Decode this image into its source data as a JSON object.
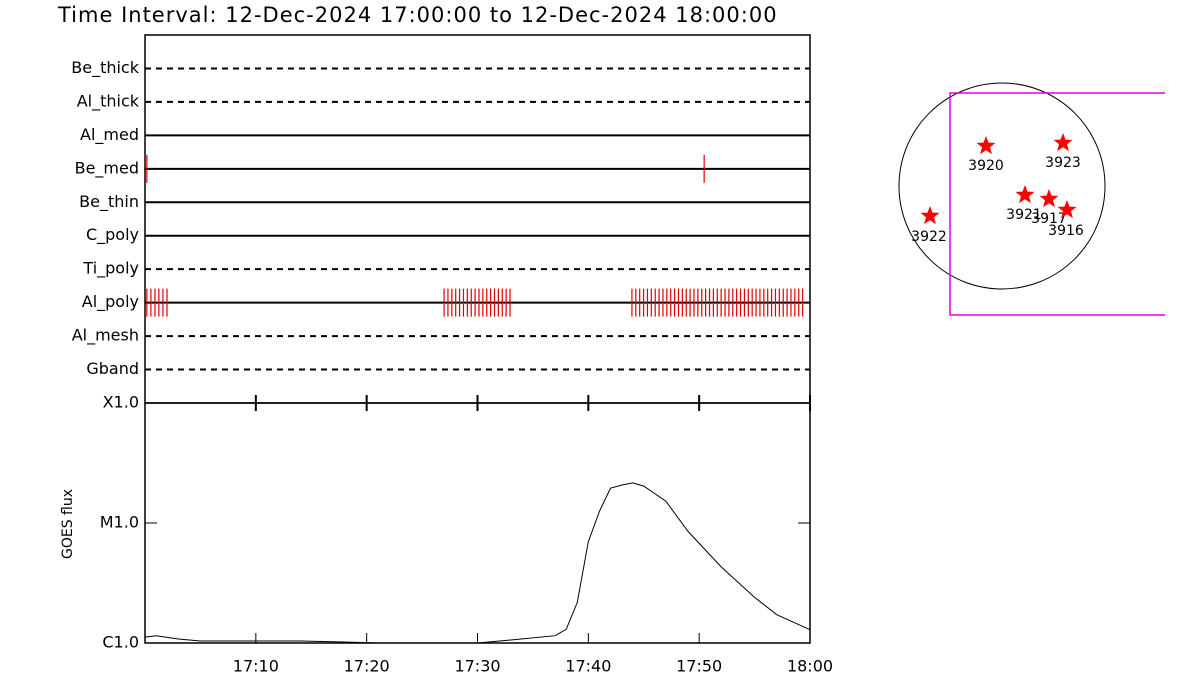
{
  "title": "Time Interval: 12-Dec-2024 17:00:00 to 12-Dec-2024 18:00:00",
  "chart_data": [
    {
      "type": "timeline",
      "categories": [
        "Be_thick",
        "Al_thick",
        "Al_med",
        "Be_med",
        "Be_thin",
        "C_poly",
        "Ti_poly",
        "Al_poly",
        "Al_mesh",
        "Gband"
      ],
      "line_styles": [
        "dashed",
        "dashed",
        "solid",
        "solid",
        "solid",
        "solid",
        "dashed",
        "solid",
        "dashed",
        "dashed"
      ],
      "color": "#e00000",
      "xlim": [
        "17:00:00",
        "18:00:00"
      ],
      "events": [
        [],
        [],
        [],
        [
          "17:00:10",
          "17:50:27"
        ],
        [],
        [],
        [],
        [
          "17:00:10",
          "17:00:32",
          "17:00:54",
          "17:01:15",
          "17:01:37",
          "17:01:59",
          "17:26:59",
          "17:27:20",
          "17:27:41",
          "17:28:02",
          "17:28:23",
          "17:28:44",
          "17:29:05",
          "17:29:26",
          "17:29:47",
          "17:30:08",
          "17:30:29",
          "17:30:50",
          "17:31:11",
          "17:31:32",
          "17:31:53",
          "17:32:14",
          "17:32:35",
          "17:32:56",
          "17:43:56",
          "17:44:17",
          "17:44:38",
          "17:44:59",
          "17:45:20",
          "17:45:41",
          "17:46:02",
          "17:46:23",
          "17:46:44",
          "17:47:05",
          "17:47:26",
          "17:47:47",
          "17:48:08",
          "17:48:29",
          "17:48:50",
          "17:49:11",
          "17:49:32",
          "17:49:53",
          "17:50:14",
          "17:50:35",
          "17:50:56",
          "17:51:17",
          "17:51:38",
          "17:51:59",
          "17:52:20",
          "17:52:41",
          "17:53:02",
          "17:53:23",
          "17:53:44",
          "17:54:05",
          "17:54:26",
          "17:54:47",
          "17:55:08",
          "17:55:29",
          "17:55:50",
          "17:56:11",
          "17:56:32",
          "17:56:53",
          "17:57:14",
          "17:57:35",
          "17:57:56",
          "17:58:17",
          "17:58:38",
          "17:58:59",
          "17:59:20"
        ],
        [],
        []
      ]
    },
    {
      "type": "line",
      "ylabel": "GOES flux",
      "log": true,
      "color": "#000000",
      "x": [
        "17:00",
        "17:01",
        "17:03",
        "17:05",
        "17:14",
        "17:18",
        "17:21",
        "17:28",
        "17:30",
        "17:33",
        "17:37",
        "17:38",
        "17:39",
        "17:40",
        "17:41",
        "17:42",
        "17:43",
        "17:44",
        "17:45",
        "17:47",
        "17:49",
        "17:52",
        "17:55",
        "17:57",
        "17:59",
        "18:00"
      ],
      "values": [
        1.12e-06,
        1.15e-06,
        1.08e-06,
        1.04e-06,
        1.04e-06,
        1.02e-06,
        1e-06,
        1e-06,
        1e-06,
        1.06e-06,
        1.15e-06,
        1.3e-06,
        2.18e-06,
        6.98e-06,
        1.25e-05,
        1.95e-05,
        2.07e-05,
        2.16e-05,
        2.03e-05,
        1.52e-05,
        8.5e-06,
        4.3e-06,
        2.4e-06,
        1.72e-06,
        1.42e-06,
        1.29e-06
      ],
      "xlim": [
        "17:00",
        "18:00"
      ],
      "xticks": [
        "17:10",
        "17:20",
        "17:30",
        "17:40",
        "17:50",
        "18:00"
      ],
      "ylim": [
        1e-06,
        0.0001
      ],
      "yticks": [
        {
          "value": 1e-06,
          "label": "C1.0"
        },
        {
          "value": 1e-05,
          "label": "M1.0"
        },
        {
          "value": 0.0001,
          "label": "X1.0"
        }
      ]
    }
  ],
  "map": {
    "active_regions": [
      "3920",
      "3923",
      "3921",
      "3917",
      "3916",
      "3922"
    ],
    "star_color": "#ff0000",
    "fov_color": "#e000e0"
  }
}
